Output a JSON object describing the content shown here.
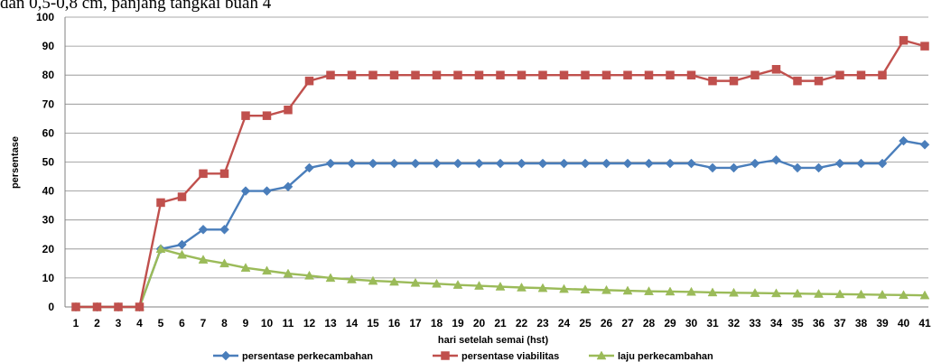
{
  "header_text": "dan 0,5-0,8 cm, panjang tangkai buah 4",
  "chart_data": {
    "type": "line",
    "title": "",
    "xlabel": "hari setelah semai (hst)",
    "ylabel": "persentase",
    "ylim": [
      0,
      100
    ],
    "yticks": [
      0,
      10,
      20,
      30,
      40,
      50,
      60,
      70,
      80,
      90,
      100
    ],
    "grid": "horizontal",
    "legend_position": "bottom",
    "categories": [
      "1",
      "2",
      "3",
      "4",
      "5",
      "6",
      "7",
      "8",
      "9",
      "10",
      "11",
      "12",
      "13",
      "14",
      "15",
      "16",
      "17",
      "18",
      "19",
      "20",
      "21",
      "22",
      "23",
      "24",
      "25",
      "26",
      "27",
      "28",
      "29",
      "30",
      "31",
      "32",
      "33",
      "34",
      "35",
      "36",
      "37",
      "38",
      "39",
      "40",
      "41"
    ],
    "series": [
      {
        "name": "persentase perkecambahan",
        "color": "#4a7ebb",
        "marker": "diamond",
        "values": [
          0,
          0,
          0,
          0,
          20,
          21.5,
          26.7,
          26.7,
          40,
          40,
          41.5,
          48,
          49.5,
          49.5,
          49.5,
          49.5,
          49.5,
          49.5,
          49.5,
          49.5,
          49.5,
          49.5,
          49.5,
          49.5,
          49.5,
          49.5,
          49.5,
          49.5,
          49.5,
          49.5,
          48,
          48,
          49.5,
          50.7,
          48,
          48,
          49.5,
          49.5,
          49.5,
          57.3,
          56
        ]
      },
      {
        "name": "persentase viabilitas",
        "color": "#c0504d",
        "marker": "square",
        "values": [
          0,
          0,
          0,
          0,
          36,
          38,
          46,
          46,
          66,
          66,
          68,
          78,
          80,
          80,
          80,
          80,
          80,
          80,
          80,
          80,
          80,
          80,
          80,
          80,
          80,
          80,
          80,
          80,
          80,
          80,
          78,
          78,
          80,
          82,
          78,
          78,
          80,
          80,
          80,
          92,
          90
        ]
      },
      {
        "name": "laju perkecambahan",
        "color": "#9bbb59",
        "marker": "triangle",
        "values": [
          0,
          0,
          0,
          0,
          20,
          18,
          16.3,
          15,
          13.5,
          12.5,
          11.5,
          10.8,
          10,
          9.5,
          9,
          8.7,
          8.3,
          8,
          7.6,
          7.3,
          7,
          6.7,
          6.5,
          6.2,
          6,
          5.8,
          5.6,
          5.4,
          5.3,
          5.2,
          5,
          4.9,
          4.8,
          4.7,
          4.6,
          4.5,
          4.4,
          4.3,
          4.2,
          4.1,
          4
        ]
      }
    ]
  }
}
